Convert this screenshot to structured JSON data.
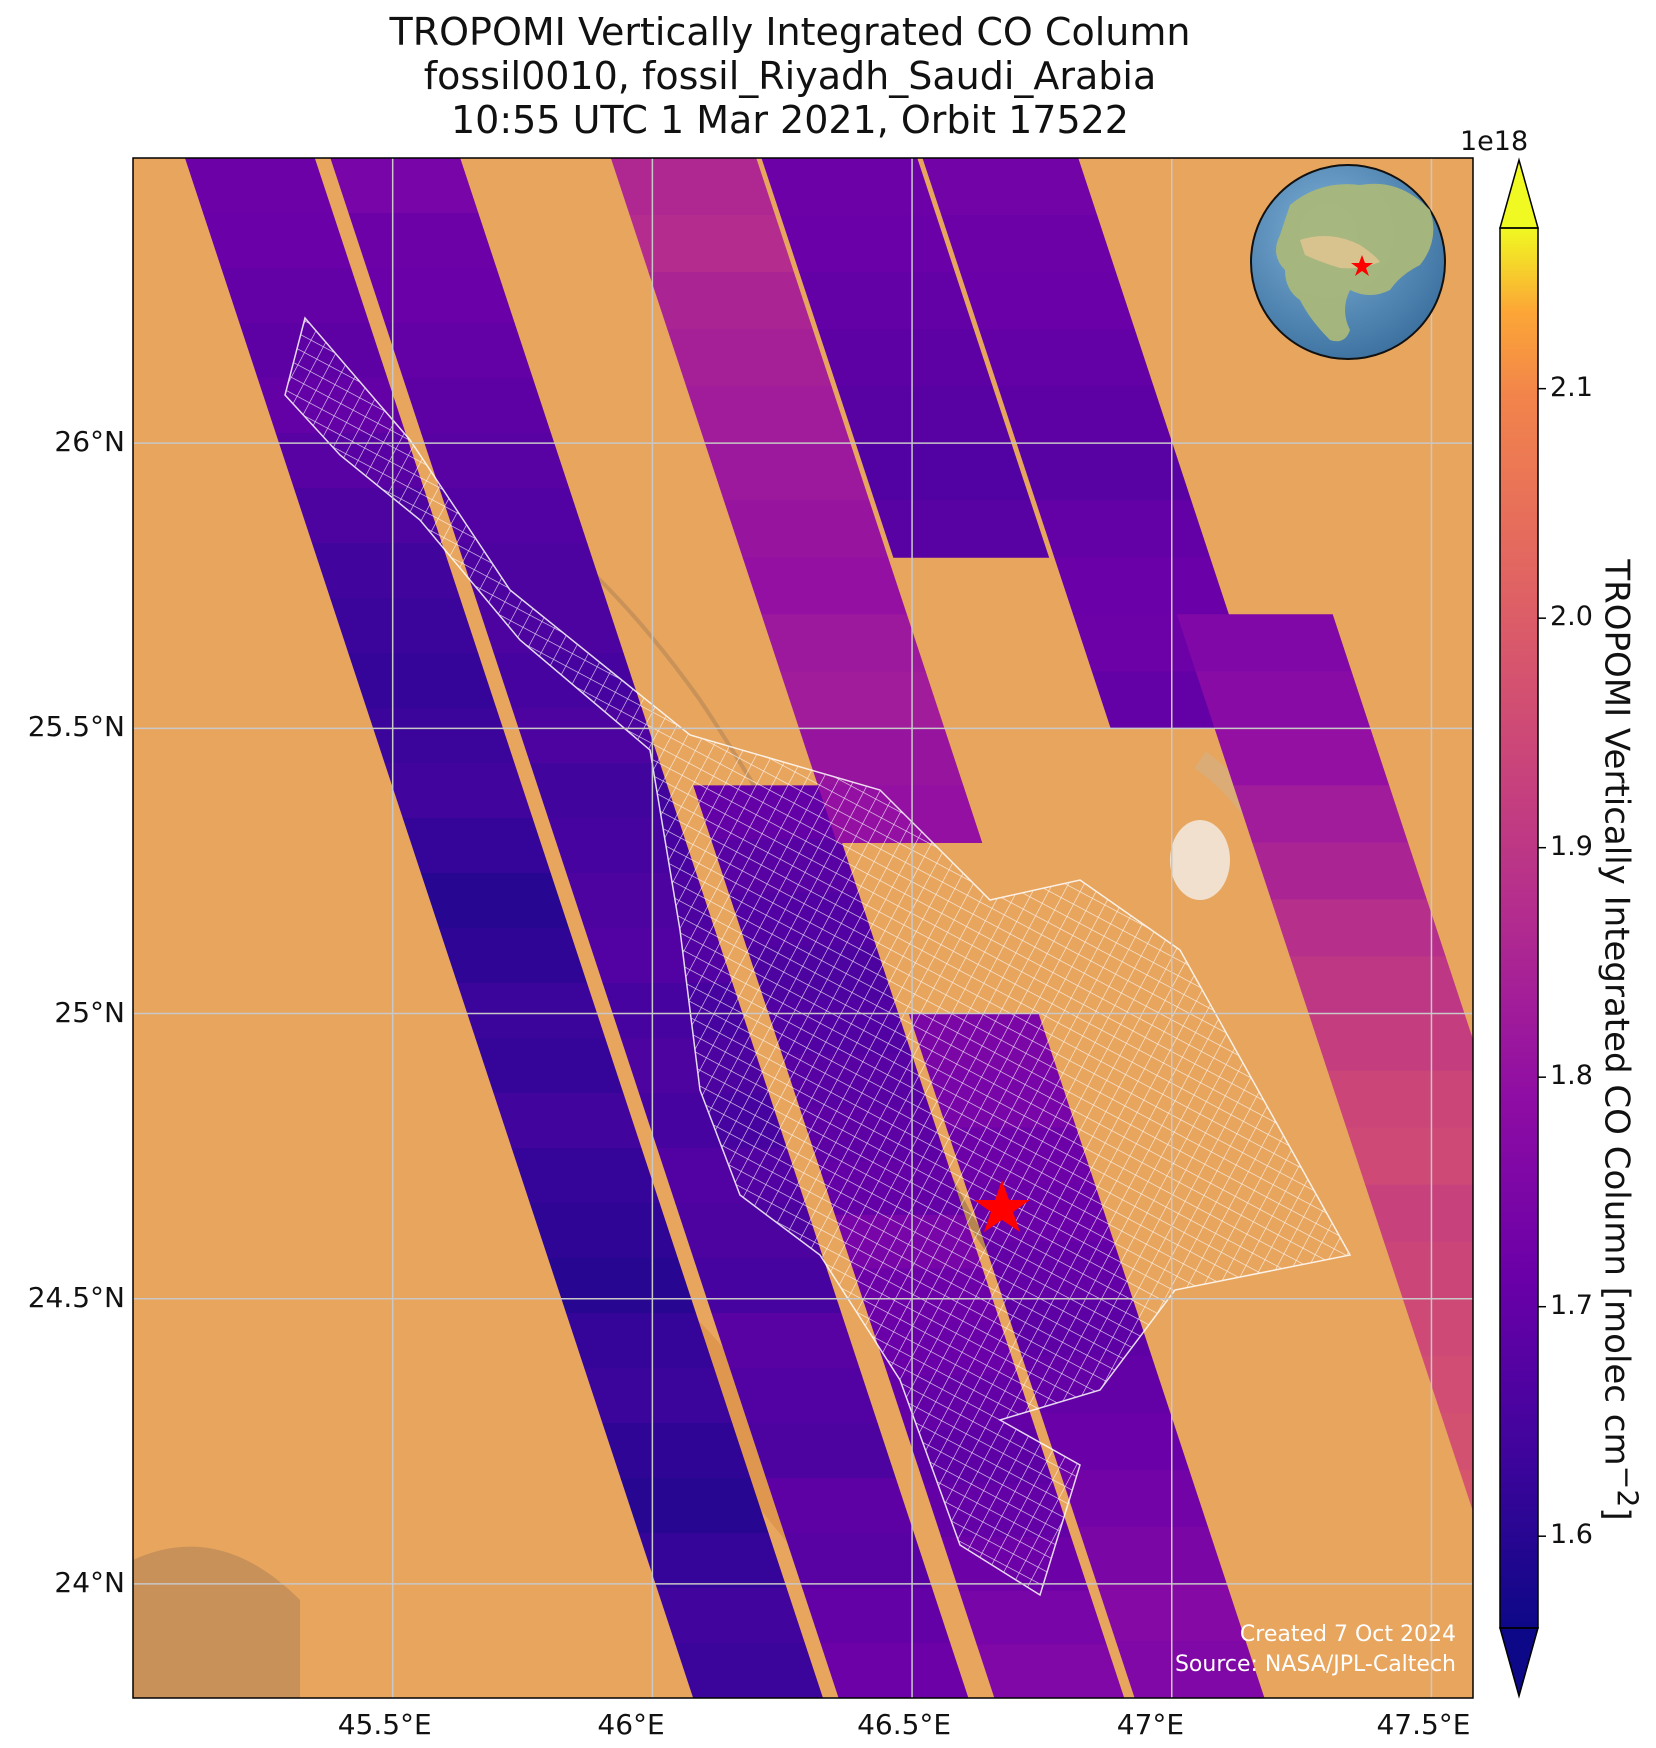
{
  "title": {
    "line1": "TROPOMI Vertically Integrated CO Column",
    "line2": "fossil0010, fossil_Riyadh_Saudi_Arabia",
    "line3": "10:55 UTC 1 Mar 2021, Orbit 17522"
  },
  "map": {
    "lon_range": [
      45.0,
      47.58
    ],
    "lat_range": [
      23.8,
      26.5
    ],
    "lon_ticks": [
      {
        "value": 45.5,
        "label": "45.5°E"
      },
      {
        "value": 46.0,
        "label": "46°E"
      },
      {
        "value": 46.5,
        "label": "46.5°E"
      },
      {
        "value": 47.0,
        "label": "47°E"
      },
      {
        "value": 47.5,
        "label": "47.5°E"
      }
    ],
    "lat_ticks": [
      {
        "value": 24.0,
        "label": "24°N"
      },
      {
        "value": 24.5,
        "label": "24.5°N"
      },
      {
        "value": 25.0,
        "label": "25°N"
      },
      {
        "value": 25.5,
        "label": "25.5°N"
      },
      {
        "value": 26.0,
        "label": "26°N"
      }
    ],
    "gridlines": true,
    "basemap": "satellite desert imagery",
    "target_marker": {
      "lon": 46.68,
      "lat": 24.68,
      "symbol": "red-star-icon"
    },
    "inset_globe": {
      "position": "top-right",
      "marker": "red-star-icon"
    }
  },
  "colorbar": {
    "label": "TROPOMI Vertically Integrated CO Column [molec cm",
    "label_superscript": "−2",
    "label_close": "]",
    "multiplier": "1e18",
    "range": [
      1.56,
      2.17
    ],
    "ticks": [
      {
        "value": 1.6,
        "label": "1.6"
      },
      {
        "value": 1.7,
        "label": "1.7"
      },
      {
        "value": 1.8,
        "label": "1.8"
      },
      {
        "value": 1.9,
        "label": "1.9"
      },
      {
        "value": 2.0,
        "label": "2.0"
      },
      {
        "value": 2.1,
        "label": "2.1"
      }
    ],
    "extend": "both",
    "colormap": "plasma"
  },
  "footer": {
    "created": "Created 7 Oct 2024",
    "source": "Source: NASA/JPL-Caltech"
  },
  "chart_data": {
    "type": "heatmap",
    "units": "molec cm-2 (x1e18)",
    "swaths": [
      {
        "lon0": 45.1,
        "lat_top": 26.5,
        "lat_bot": 23.8,
        "tilt": 0.33,
        "width": 0.25,
        "values": [
          1.72,
          1.71,
          1.7,
          1.69,
          1.7,
          1.68,
          1.66,
          1.64,
          1.63,
          1.62,
          1.63,
          1.64,
          1.62,
          1.6,
          1.61,
          1.63,
          1.62,
          1.64,
          1.62,
          1.61,
          1.6,
          1.62,
          1.63,
          1.61,
          1.6,
          1.62,
          1.64,
          1.63
        ]
      },
      {
        "lon0": 45.38,
        "lat_top": 26.5,
        "lat_bot": 23.8,
        "tilt": 0.33,
        "width": 0.25,
        "values": [
          1.74,
          1.72,
          1.71,
          1.7,
          1.69,
          1.68,
          1.67,
          1.66,
          1.66,
          1.65,
          1.66,
          1.64,
          1.65,
          1.66,
          1.67,
          1.65,
          1.66,
          1.65,
          1.67,
          1.66,
          1.65,
          1.68,
          1.67,
          1.66,
          1.69,
          1.68,
          1.7,
          1.72
        ]
      },
      {
        "lon0": 45.68,
        "lat_top": 25.4,
        "lat_bot": 23.8,
        "tilt": 0.33,
        "width": 0.25,
        "values": [
          1.7,
          1.68,
          1.67,
          1.66,
          1.67,
          1.68,
          1.69,
          1.7,
          1.74,
          1.72,
          1.71,
          1.7,
          1.69,
          1.7,
          1.72,
          1.74,
          1.76
        ]
      },
      {
        "lon0": 45.95,
        "lat_top": 25.0,
        "lat_bot": 23.8,
        "tilt": 0.33,
        "width": 0.25,
        "values": [
          1.75,
          1.74,
          1.72,
          1.71,
          1.7,
          1.69,
          1.7,
          1.71,
          1.73,
          1.75,
          1.77,
          1.76
        ]
      },
      {
        "lon0": 45.92,
        "lat_top": 26.5,
        "lat_bot": 25.3,
        "tilt": 0.33,
        "width": 0.28,
        "values": [
          1.86,
          1.87,
          1.85,
          1.84,
          1.83,
          1.82,
          1.81,
          1.8,
          1.82,
          1.83,
          1.81,
          1.8
        ]
      },
      {
        "lon0": 46.21,
        "lat_top": 26.5,
        "lat_bot": 25.8,
        "tilt": 0.33,
        "width": 0.3,
        "values": [
          1.72,
          1.71,
          1.7,
          1.69,
          1.68,
          1.67,
          1.68
        ]
      },
      {
        "lon0": 46.52,
        "lat_top": 26.5,
        "lat_bot": 25.5,
        "tilt": 0.33,
        "width": 0.3,
        "values": [
          1.73,
          1.72,
          1.71,
          1.7,
          1.69,
          1.68,
          1.7,
          1.71,
          1.72,
          1.7
        ]
      },
      {
        "lon0": 46.72,
        "lat_top": 25.7,
        "lat_bot": 23.8,
        "tilt": 0.33,
        "width": 0.3,
        "values": [
          1.76,
          1.78,
          1.8,
          1.83,
          1.85,
          1.88,
          1.9,
          1.92,
          1.94,
          1.95,
          1.93,
          1.94,
          1.95,
          1.96,
          1.97,
          1.98,
          1.99,
          2.0,
          1.99
        ]
      },
      {
        "lon0": 47.22,
        "lat_top": 25.1,
        "lat_bot": 23.95,
        "tilt": 0.33,
        "width": 0.24,
        "values": [
          2.05,
          2.07,
          2.09,
          2.1,
          2.08,
          2.06,
          2.05,
          2.04,
          2.06,
          2.08,
          2.1,
          2.12,
          2.14,
          2.15,
          2.16,
          2.13,
          2.1,
          2.08,
          2.07,
          2.05,
          2.04,
          2.03,
          2.02
        ]
      }
    ],
    "plume_outline": "white mesh over the Riyadh area"
  }
}
